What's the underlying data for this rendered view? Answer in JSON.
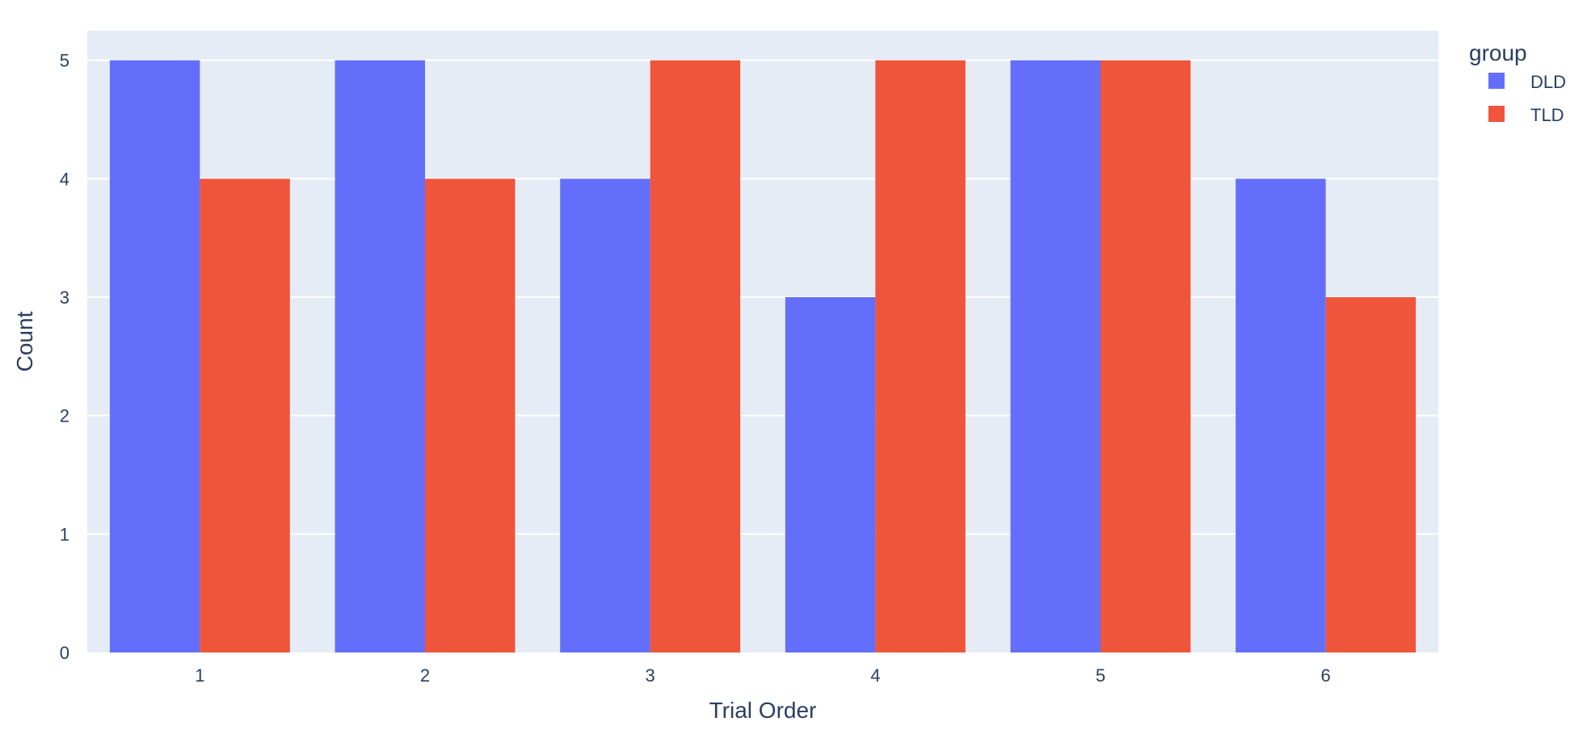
{
  "chart_data": {
    "type": "bar",
    "barmode": "group",
    "categories": [
      "1",
      "2",
      "3",
      "4",
      "5",
      "6"
    ],
    "series": [
      {
        "name": "DLD",
        "color": "#636efa",
        "values": [
          5,
          5,
          4,
          3,
          5,
          4
        ]
      },
      {
        "name": "TLD",
        "color": "#ef553b",
        "values": [
          4,
          4,
          5,
          5,
          5,
          3
        ]
      }
    ],
    "xlabel": "Trial Order",
    "ylabel": "Count",
    "ylim": [
      0,
      5.25
    ],
    "yticks": [
      "0",
      "1",
      "2",
      "3",
      "4",
      "5"
    ],
    "grid": true,
    "legend": {
      "title": "group",
      "placement": "top-right"
    },
    "colors": {
      "plot_bg": "#e5ecf6",
      "grid": "#ffffff",
      "text": "#2a3f5f"
    }
  }
}
